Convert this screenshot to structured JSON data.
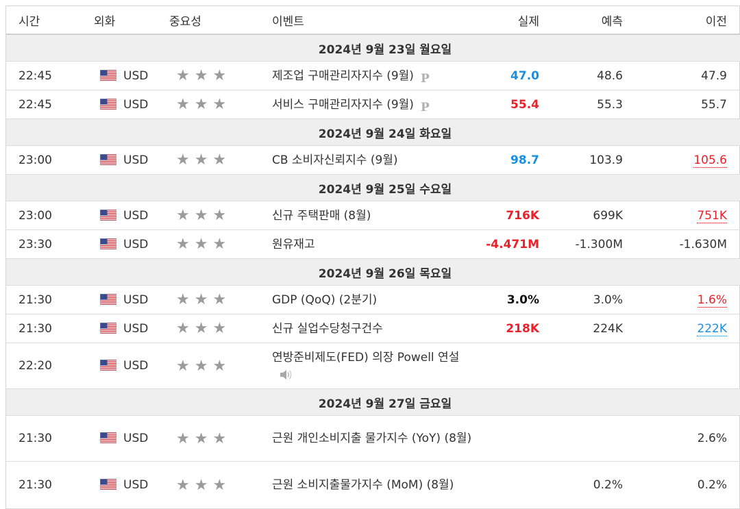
{
  "headers": {
    "time": "시간",
    "currency": "외화",
    "importance": "중요성",
    "event": "이벤트",
    "actual": "실제",
    "forecast": "예측",
    "previous": "이전"
  },
  "colors": {
    "better": "#1a8fe0",
    "worse": "#e8212a",
    "star": "#9b9b9b",
    "date_bg": "#efefef"
  },
  "icons": {
    "flag": "us-flag-icon",
    "star": "star-icon",
    "preliminary": "p-badge-icon",
    "speech": "speaker-icon"
  },
  "days": [
    {
      "date": "2024년 9월 23일 월요일",
      "events": [
        {
          "time": "22:45",
          "currency": "USD",
          "importance": 3,
          "event": "제조업 구매관리자지수 (9월)",
          "badge": "P",
          "actual": "47.0",
          "actual_color": "blue",
          "forecast": "48.6",
          "previous": "47.9",
          "previous_color": "",
          "revised": false
        },
        {
          "time": "22:45",
          "currency": "USD",
          "importance": 3,
          "event": "서비스 구매관리자지수 (9월)",
          "badge": "P",
          "actual": "55.4",
          "actual_color": "red",
          "forecast": "55.3",
          "previous": "55.7",
          "previous_color": "",
          "revised": false
        }
      ]
    },
    {
      "date": "2024년 9월 24일 화요일",
      "events": [
        {
          "time": "23:00",
          "currency": "USD",
          "importance": 3,
          "event": "CB 소비자신뢰지수 (9월)",
          "badge": "",
          "actual": "98.7",
          "actual_color": "blue",
          "forecast": "103.9",
          "previous": "105.6",
          "previous_color": "red",
          "revised": true
        }
      ]
    },
    {
      "date": "2024년 9월 25일 수요일",
      "events": [
        {
          "time": "23:00",
          "currency": "USD",
          "importance": 3,
          "event": "신규 주택판매 (8월)",
          "badge": "",
          "actual": "716K",
          "actual_color": "red",
          "forecast": "699K",
          "previous": "751K",
          "previous_color": "red",
          "revised": true
        },
        {
          "time": "23:30",
          "currency": "USD",
          "importance": 3,
          "event": "원유재고",
          "badge": "",
          "actual": "-4.471M",
          "actual_color": "red",
          "forecast": "-1.300M",
          "previous": "-1.630M",
          "previous_color": "",
          "revised": false
        }
      ]
    },
    {
      "date": "2024년 9월 26일 목요일",
      "events": [
        {
          "time": "21:30",
          "currency": "USD",
          "importance": 3,
          "event": "GDP (QoQ) (2분기)",
          "badge": "",
          "actual": "3.0%",
          "actual_color": "black",
          "forecast": "3.0%",
          "previous": "1.6%",
          "previous_color": "red",
          "revised": true
        },
        {
          "time": "21:30",
          "currency": "USD",
          "importance": 3,
          "event": "신규 실업수당청구건수",
          "badge": "",
          "actual": "218K",
          "actual_color": "red",
          "forecast": "224K",
          "previous": "222K",
          "previous_color": "blue",
          "revised": true
        },
        {
          "time": "22:20",
          "currency": "USD",
          "importance": 3,
          "event": "연방준비제도(FED) 의장 Powell 연설",
          "badge": "speech",
          "actual": "",
          "actual_color": "",
          "forecast": "",
          "previous": "",
          "previous_color": "",
          "revised": false,
          "tall": 1
        }
      ]
    },
    {
      "date": "2024년 9월 27일 금요일",
      "events": [
        {
          "time": "21:30",
          "currency": "USD",
          "importance": 3,
          "event": "근원 개인소비지출 물가지수 (YoY) (8월)",
          "badge": "",
          "actual": "",
          "actual_color": "",
          "forecast": "",
          "previous": "2.6%",
          "previous_color": "",
          "revised": false,
          "tall": 1
        },
        {
          "time": "21:30",
          "currency": "USD",
          "importance": 3,
          "event": "근원 소비지출물가지수 (MoM) (8월)",
          "badge": "",
          "actual": "",
          "actual_color": "",
          "forecast": "0.2%",
          "previous": "0.2%",
          "previous_color": "",
          "revised": false,
          "tall": 2
        }
      ]
    }
  ]
}
